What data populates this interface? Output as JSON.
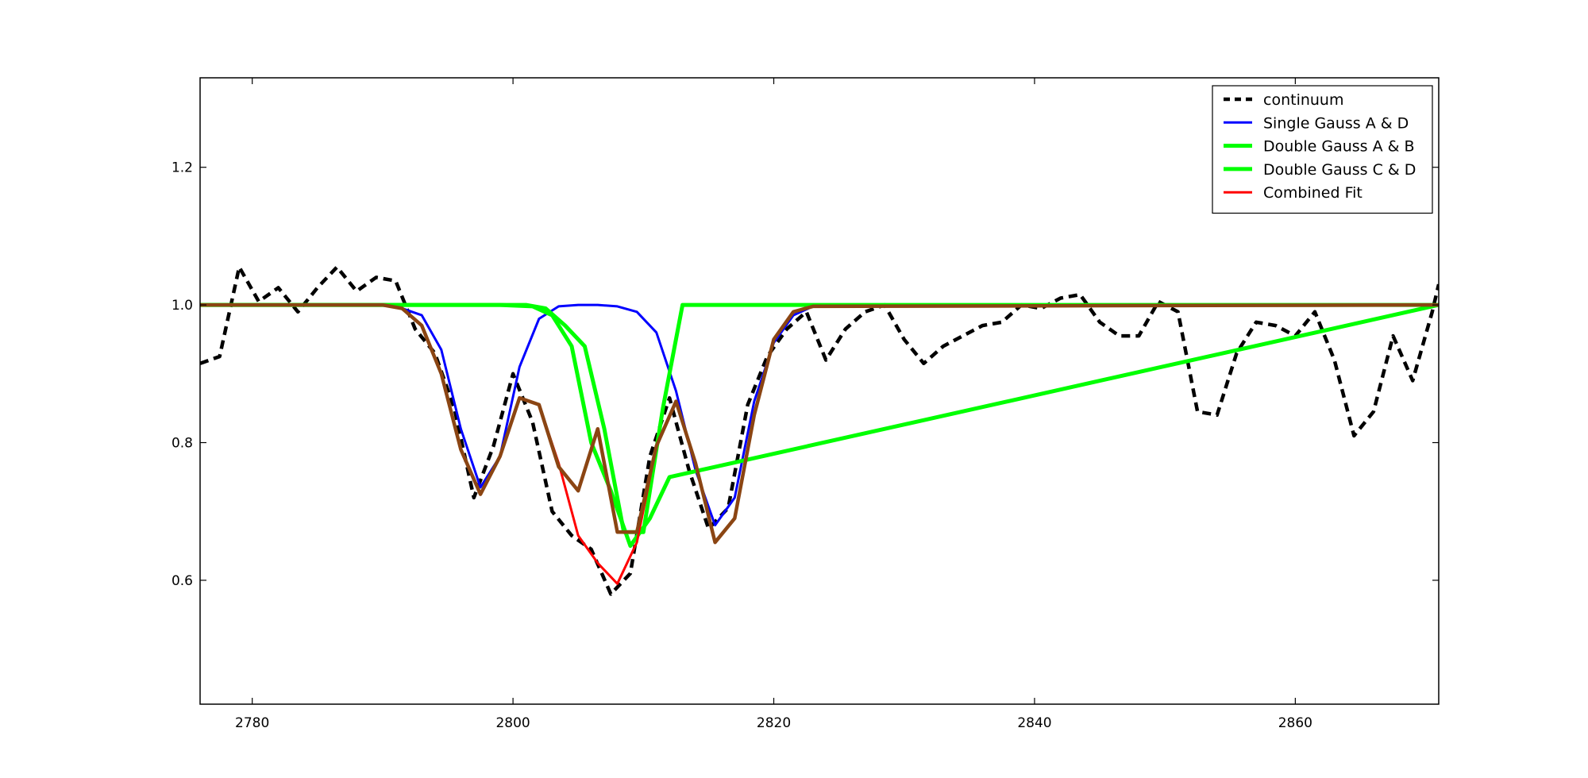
{
  "chart_data": {
    "type": "line",
    "title": "",
    "xlabel": "",
    "ylabel": "",
    "xlim": [
      2776,
      2871
    ],
    "ylim": [
      0.42,
      1.33
    ],
    "xticks": [
      2780,
      2800,
      2820,
      2840,
      2860
    ],
    "yticks": [
      0.6,
      0.8,
      1.0,
      1.2
    ],
    "xtick_labels": [
      "2780",
      "2800",
      "2820",
      "2840",
      "2860"
    ],
    "ytick_labels": [
      "0.6",
      "0.8",
      "1.0",
      "1.2"
    ],
    "grid": false,
    "legend_position": "top-right",
    "series": [
      {
        "name": "continuum",
        "color": "#000000",
        "style": "dashed",
        "x": [
          2776,
          2777.5,
          2779,
          2780.5,
          2782,
          2783.5,
          2785,
          2786.5,
          2788,
          2789.5,
          2791,
          2792.5,
          2794,
          2795.5,
          2797,
          2798.5,
          2800,
          2801.5,
          2803,
          2804.5,
          2806,
          2807.5,
          2809,
          2810.5,
          2812,
          2813.5,
          2815,
          2816.5,
          2818,
          2819.5,
          2821,
          2822.5,
          2824,
          2825.5,
          2827,
          2828.5,
          2830,
          2831.5,
          2833,
          2834.5,
          2836,
          2837.5,
          2839,
          2840.5,
          2842,
          2843.5,
          2845,
          2846.5,
          2848,
          2849.5,
          2851,
          2852.5,
          2854,
          2855.5,
          2857,
          2858.5,
          2860,
          2861.5,
          2863,
          2864.5,
          2866,
          2867.5,
          2869,
          2870.5,
          2871
        ],
        "y": [
          0.915,
          0.925,
          1.055,
          1.005,
          1.025,
          0.99,
          1.025,
          1.055,
          1.02,
          1.04,
          1.035,
          0.965,
          0.93,
          0.85,
          0.72,
          0.795,
          0.9,
          0.83,
          0.7,
          0.665,
          0.645,
          0.58,
          0.61,
          0.78,
          0.865,
          0.76,
          0.675,
          0.705,
          0.855,
          0.925,
          0.965,
          0.99,
          0.92,
          0.965,
          0.99,
          1.0,
          0.95,
          0.915,
          0.94,
          0.955,
          0.97,
          0.975,
          1.0,
          0.995,
          1.01,
          1.015,
          0.975,
          0.955,
          0.955,
          1.005,
          0.99,
          0.845,
          0.84,
          0.93,
          0.975,
          0.97,
          0.955,
          0.99,
          0.92,
          0.81,
          0.845,
          0.955,
          0.89,
          0.99,
          1.03
        ]
      },
      {
        "name": "Single Gauss A & D",
        "color": "#0000ff",
        "style": "solid",
        "x": [
          2776,
          2786,
          2790,
          2791.5,
          2793,
          2794.5,
          2796,
          2797.5,
          2799,
          2800.5,
          2802,
          2803.5,
          2805,
          2806.5,
          2808,
          2809.5,
          2811,
          2812.5,
          2814,
          2815.5,
          2817,
          2818.5,
          2820,
          2821.5,
          2823,
          2871
        ],
        "y": [
          1.0,
          1.0,
          1.0,
          0.995,
          0.985,
          0.935,
          0.82,
          0.735,
          0.78,
          0.91,
          0.98,
          0.998,
          1.0,
          1.0,
          0.998,
          0.99,
          0.96,
          0.875,
          0.76,
          0.68,
          0.72,
          0.86,
          0.945,
          0.985,
          0.998,
          1.0
        ]
      },
      {
        "name": "Double Gauss A & B",
        "color": "#00ff00",
        "style": "solid",
        "x": [
          2776,
          2799,
          2801.5,
          2803,
          2804.5,
          2806,
          2807.5,
          2809,
          2810.5,
          2812,
          2871
        ],
        "y": [
          1.0,
          1.0,
          0.998,
          0.985,
          0.94,
          0.8,
          0.73,
          0.65,
          0.69,
          0.75,
          1.0
        ]
      },
      {
        "name": "Double Gauss C & D",
        "color": "#00ff00",
        "style": "solid",
        "x": [
          2776,
          2801,
          2802.5,
          2804,
          2805.5,
          2807,
          2808.5,
          2810,
          2811.5,
          2813,
          2871
        ],
        "y": [
          1.0,
          1.0,
          0.995,
          0.97,
          0.94,
          0.82,
          0.67,
          0.67,
          0.85,
          1.0,
          1.0
        ]
      },
      {
        "name": "Combined Fit",
        "color": "#ff0000",
        "style": "solid",
        "x": [
          2776,
          2790,
          2791.5,
          2793,
          2794.5,
          2796,
          2797.5,
          2799,
          2800.5,
          2802,
          2803.5,
          2805,
          2806.5,
          2808,
          2809.5,
          2811,
          2812.5,
          2814,
          2815.5,
          2817,
          2818.5,
          2820,
          2821.5,
          2823,
          2871
        ],
        "y": [
          1.0,
          1.0,
          0.995,
          0.97,
          0.9,
          0.79,
          0.725,
          0.78,
          0.865,
          0.855,
          0.77,
          0.665,
          0.625,
          0.595,
          0.655,
          0.795,
          0.86,
          0.77,
          0.655,
          0.69,
          0.84,
          0.95,
          0.99,
          0.998,
          1.0
        ]
      },
      {
        "name": "",
        "color": "#8b4513",
        "style": "solid",
        "x": [
          2776,
          2790,
          2791.5,
          2793,
          2794.5,
          2796,
          2797.5,
          2799,
          2800.5,
          2802,
          2803.5,
          2805,
          2806.5,
          2808,
          2809.5,
          2811,
          2812.5,
          2814,
          2815.5,
          2817,
          2818.5,
          2820,
          2821.5,
          2823,
          2871
        ],
        "y": [
          1.0,
          1.0,
          0.995,
          0.97,
          0.9,
          0.79,
          0.725,
          0.78,
          0.865,
          0.855,
          0.765,
          0.73,
          0.82,
          0.67,
          0.67,
          0.795,
          0.86,
          0.77,
          0.655,
          0.69,
          0.84,
          0.95,
          0.99,
          0.998,
          1.0
        ]
      }
    ]
  }
}
